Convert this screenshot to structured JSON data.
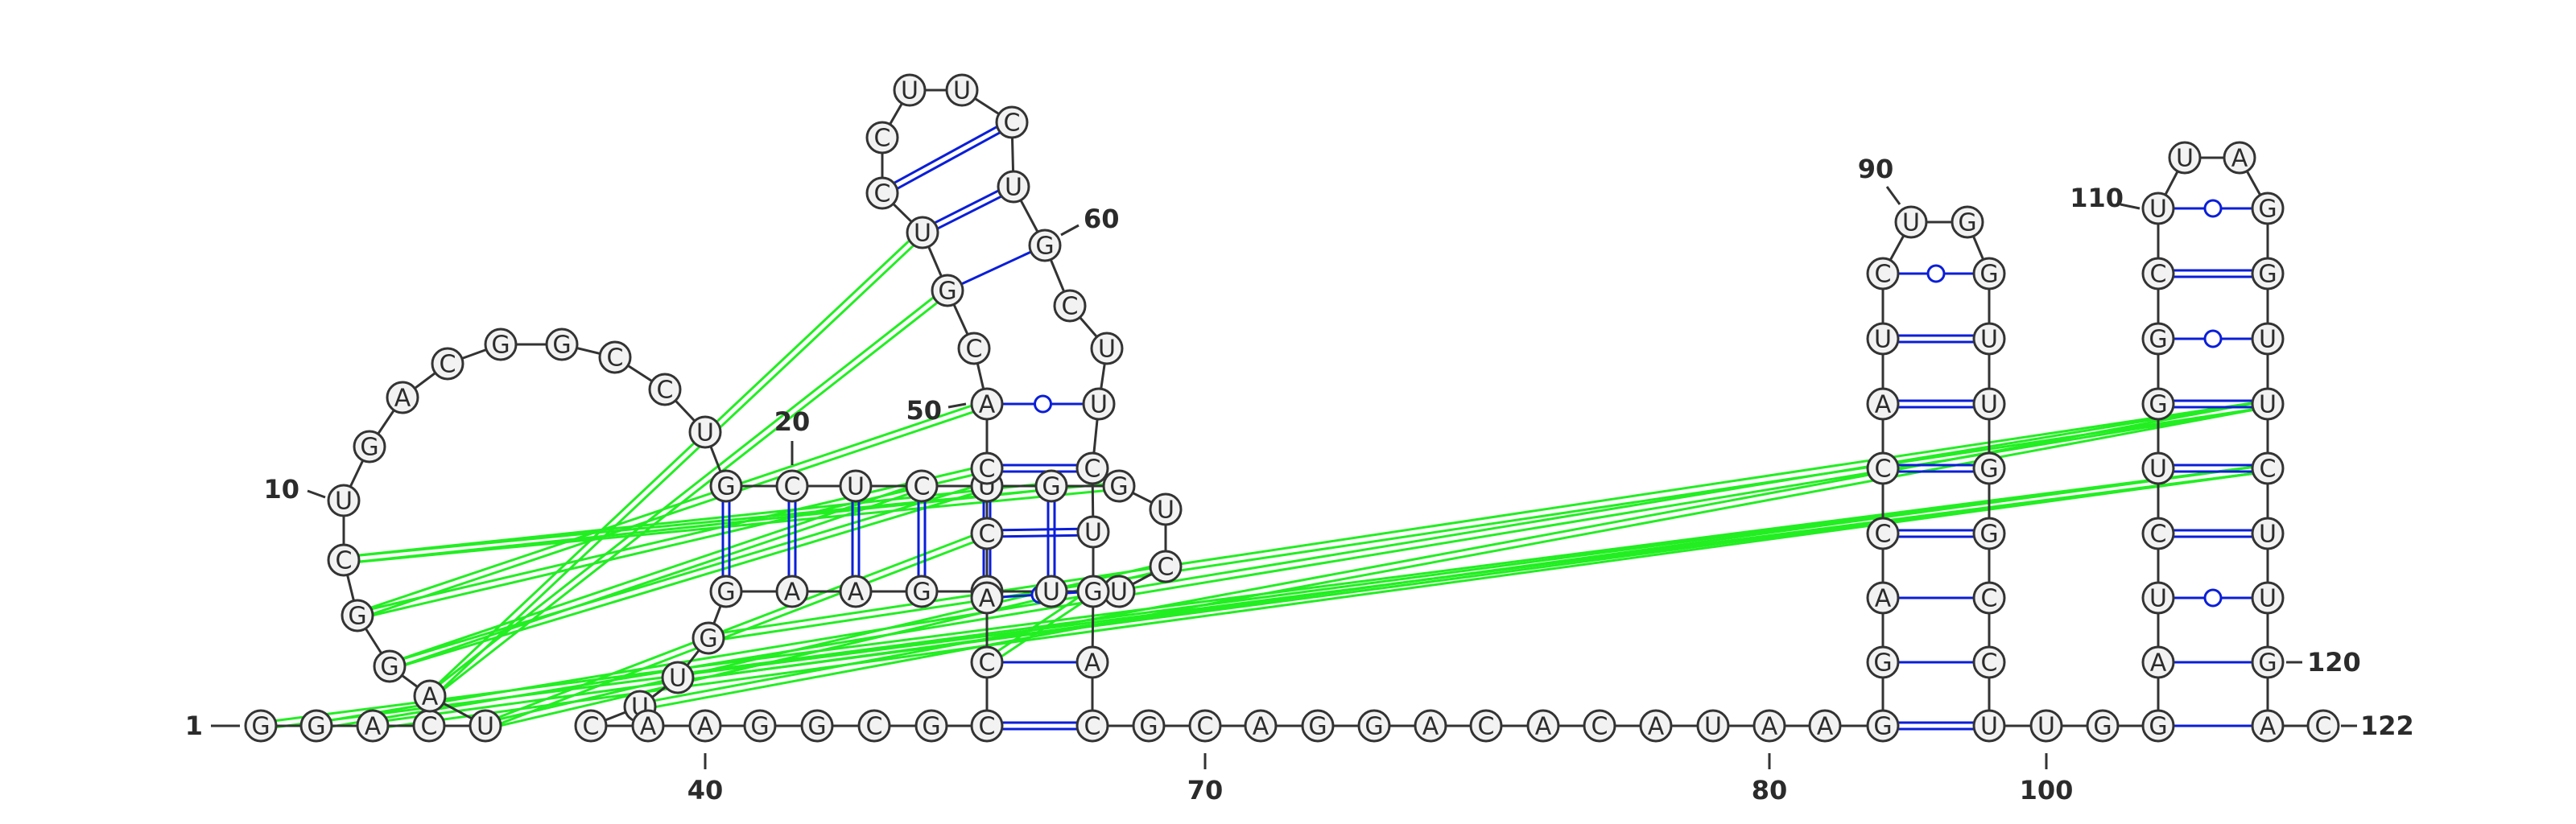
{
  "sequence": "GGACUAGGCUGACGGCCUGCUCUGGUCUUCGAAGGUUCAAGGCGCCACCACGUCCUUCUGCUUCUGACGCAGGACACAUAAGGACCAUCUGGUUGGCCUUGGAUCUGGCUUAGGUUCUUGAC",
  "labels": [
    "1",
    "10",
    "20",
    "40",
    "50",
    "60",
    "70",
    "80",
    "90",
    "100",
    "110",
    "120",
    "122"
  ],
  "colors": {
    "base_fill": "#f2f2f2",
    "base_stroke": "#333333",
    "canonical_pair": "#0a1ed8",
    "pseudoknot": "#22ee22",
    "text": "#2b2b2b"
  }
}
